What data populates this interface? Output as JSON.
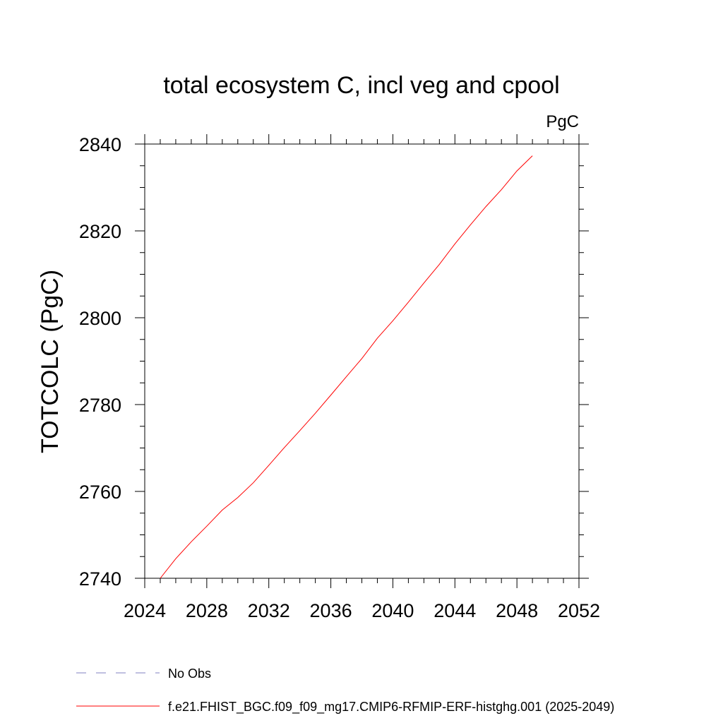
{
  "chart_data": {
    "type": "line",
    "title": "total ecosystem C, incl veg and cpool",
    "units_label": "PgC",
    "xlabel": "",
    "ylabel": "TOTCOLC  (PgC)",
    "xlim": [
      2024,
      2052
    ],
    "ylim": [
      2740,
      2840
    ],
    "x_ticks": [
      2024,
      2028,
      2032,
      2036,
      2040,
      2044,
      2048,
      2052
    ],
    "y_ticks": [
      2740,
      2760,
      2780,
      2800,
      2820,
      2840
    ],
    "grid": false,
    "legend_position": "bottom",
    "series": [
      {
        "name": "No Obs",
        "color": "#8080c0",
        "dash": true,
        "x": [],
        "y": []
      },
      {
        "name": "f.e21.FHIST_BGC.f09_f09_mg17.CMIP6-RFMIP-ERF-histghg.001 (2025-2049)",
        "color": "#ff0000",
        "dash": false,
        "x": [
          2025,
          2026,
          2027,
          2028,
          2029,
          2030,
          2031,
          2032,
          2033,
          2034,
          2035,
          2036,
          2037,
          2038,
          2039,
          2040,
          2041,
          2042,
          2043,
          2044,
          2045,
          2046,
          2047,
          2048,
          2049
        ],
        "y": [
          2740.0,
          2744.5,
          2748.4,
          2752.0,
          2755.7,
          2758.6,
          2762.0,
          2766.0,
          2770.1,
          2774.0,
          2778.0,
          2782.2,
          2786.4,
          2790.6,
          2795.3,
          2799.3,
          2803.6,
          2808.0,
          2812.3,
          2817.0,
          2821.4,
          2825.6,
          2829.5,
          2833.8,
          2837.3
        ]
      }
    ]
  }
}
